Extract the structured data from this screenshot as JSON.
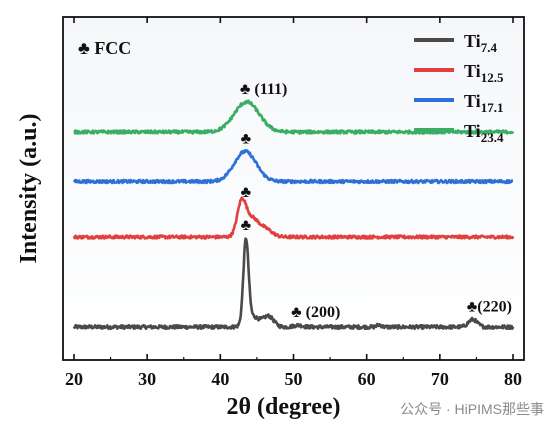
{
  "chart_data": {
    "type": "line",
    "xlabel": "2θ (degree)",
    "ylabel": "Intensity (a.u.)",
    "xlim": [
      20,
      80
    ],
    "xticks": [
      "20",
      "30",
      "40",
      "50",
      "60",
      "70",
      "80"
    ],
    "y_ticks_shown": false,
    "grid": false,
    "legend_position": "top-right",
    "phase_marker": {
      "symbol": "♣",
      "label": "FCC"
    },
    "annotations": [
      {
        "text": "♣ (111)",
        "x": 43.5,
        "series": "Ti23.4"
      },
      {
        "text": "♣",
        "x": 43.5,
        "series": "Ti17.1"
      },
      {
        "text": "♣",
        "x": 43.5,
        "series": "Ti12.5"
      },
      {
        "text": "♣",
        "x": 43.5,
        "series": "Ti7.4"
      },
      {
        "text": "♣ (200)",
        "x": 50.5,
        "series": "Ti7.4"
      },
      {
        "text": "♣(220)",
        "x": 74.5,
        "series": "Ti7.4"
      }
    ],
    "series": [
      {
        "legend_base": "Ti",
        "legend_sub": "7.4",
        "name": "Ti7.4",
        "color": "#4a4a4a",
        "offset": 0,
        "noise": 0.012,
        "peaks": [
          {
            "x": 43.5,
            "h": 0.55,
            "w": 0.35
          },
          {
            "x": 44.4,
            "h": 0.07,
            "w": 0.9
          },
          {
            "x": 46.6,
            "h": 0.07,
            "w": 0.7
          },
          {
            "x": 50.6,
            "h": 0.012,
            "w": 0.6
          },
          {
            "x": 61.7,
            "h": 0.015,
            "w": 0.3
          },
          {
            "x": 74.5,
            "h": 0.05,
            "w": 0.6
          }
        ]
      },
      {
        "legend_base": "Ti",
        "legend_sub": "12.5",
        "name": "Ti12.5",
        "color": "#e2403f",
        "offset": 0.6,
        "noise": 0.01,
        "peaks": [
          {
            "x": 42.9,
            "h": 0.22,
            "w": 0.6
          },
          {
            "x": 44.3,
            "h": 0.12,
            "w": 0.9
          },
          {
            "x": 46.2,
            "h": 0.05,
            "w": 0.9
          }
        ]
      },
      {
        "legend_base": "Ti",
        "legend_sub": "17.1",
        "name": "Ti17.1",
        "color": "#2f6fd8",
        "offset": 0.97,
        "noise": 0.01,
        "peaks": [
          {
            "x": 43.4,
            "h": 0.2,
            "w": 1.5
          }
        ]
      },
      {
        "legend_base": "Ti",
        "legend_sub": "23.4",
        "name": "Ti23.4",
        "color": "#39ad64",
        "offset": 1.3,
        "noise": 0.01,
        "peaks": [
          {
            "x": 43.6,
            "h": 0.2,
            "w": 1.7
          }
        ]
      }
    ]
  },
  "watermark": "公众号 · HiPIMS那些事"
}
